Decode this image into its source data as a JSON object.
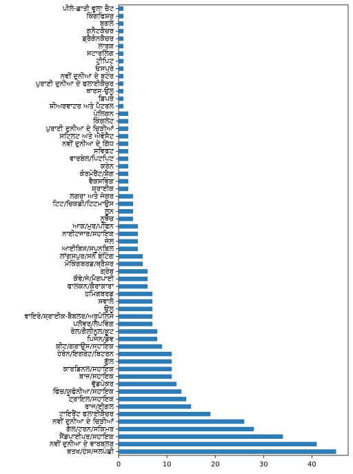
{
  "chart_data": {
    "type": "barh",
    "color": "#2f7bb4",
    "categories": [
      "ਪੀਲੇ-ਛਾਤੀ ਵੂਲਾ ਚੈਟ",
      "ਕਿੰਗਫਿਸ਼ਰ",
      "ਬਗਲੇ",
      "ਗਨੈਟਕੈਚਰ",
      "ਡ੍ਰੈਗੋਨਕੈਚਰ",
      "ਲਾਰਕ",
      "ਸਟਾਰਲਿੰਗ",
      "ਟੀਪਿਟ",
      "ਓਸਪ੍ਰੇ",
      "ਨਵੀਂ ਦੁਨੀਆ ਦੇ ਬਟੇਰ",
      "ਪੁਰਾਣੀ ਦੁਨੀਆ ਦੇ ਫਲਾਈਕੈਚਰ",
      "ਥਾਰਸ-ਉਲੂ",
      "ਡਿਪਰ",
      "ਸ਼ੀਅਰਵਾਟਰ ਅਤੇ ਪੈਟਰਲ",
      "ਪੇਲਿਕਨ",
      "ਕਿੰਗਲੇਟ",
      "ਪੁਰਾਣੀ ਦੁਨੀਆ ਦੇ ਚਿੜੀਆਂ",
      "ਸਟਿਲਟ ਅਤੇ ਐਵੋਸੈਟ",
      "ਨਵੀਂ ਦੁਨੀਆ ਦੇ ਗਿੱਧ",
      "ਸਵਿਫਟ",
      "ਵਾਰਬੇਲ/ਪਿਟਪਿਟ",
      "ਕਰੇਨ",
      "ਕੋਰਮੋਰੈਂਟ/ਸ਼ੈਗ",
      "ਵੈਕਸਵਿੰਗ",
      "ਸ਼੍ਰਾਈਕ",
      "ਲਗਰਾ ਅਤੇ ਜੇਗਰ",
      "ਟਿਟ/ਚਿਕਡੀ/ਟਿਟਮਾਉਸ",
      "ਲੂਨ",
      "ਨੂਥੈਚ",
      "ਆਕ/ਮੁਰ/ਪਫਿਨ",
      "ਨਾਈਟਜਾਰ/ਸਹਾਇਕ",
      "ਜੇਲ",
      "ਆਈਬਿਸ/ਸਪੂਨਬਿਲ",
      "ਲਾਂਗਸਪੁਰ/ਸਨੋ ਬੰਟਿੰਗ",
      "ਮੌਕਿੰਗਬਰਡ/ਥ੍ਰੈਸ਼ਰ",
      "ਗ੍ਰੇਬ",
      "ਕੌਵੇ/ਜੇ/ਮੈਗਪਾਈ",
      "ਫਾਲਕਨ/ਕੈਰਾਕਾਰਾ",
      "ਹਮਿੰਗਬਰਡ",
      "ਸਵਾਲੋ",
      "ਉਲੂ",
      "ਵਾਇਰੇ/ਸ਼੍ਰਾਈਕ-ਬੈਬਲਰ/ਅਰਪੋਲਿਸ",
      "ਪਲੋਵਰ/ਲੈਪਵਿੰਗ",
      "ਰੇਲ/ਗੈਲੀਨੂਲ/ਕੂਟ",
      "ਪਿਜਨ/ਡੋਵ",
      "ਕੀਟ/ਗਰਾਉਸ/ਸਹਾਇਕ",
      "ਹੇਰੋਨ/ਇਗਰੇਟ/ਬਿਟਰਨ",
      "ਗੁੱਲ",
      "ਕਾਰਡਿਨਲ/ਸਹਾਇਕ",
      "ਬਾਜ਼/ਸਹਾਇਕ",
      "ਵੁੱਡਪੇਕਰ",
      "ਫਿੰਚ/ਯੂਫੋਨੀਆ/ਸਹਾਇਕ",
      "ਟ੍ਰਾਇਲ/ਸਹਾਇਕ",
      "ਰਾਜ/ਈਗਲ",
      "ਟਾਇਰੈਂਟ ਫਲਾਈਕੈਚਰ",
      "ਨਵੀਂ ਦੁਨੀਆ ਦੇ ਚਿੜੀਆਂ",
      "ਗੱਲ/ਟਰਨ/ਸਕਿਮਰ",
      "ਸੈਂਡਪਾਈਪਰ/ਸਹਾਇਕ",
      "ਨਵੀਂ ਦੁਨੀਆ ਦੇ ਵਾਰਬਲਰ",
      "ਬਤਖ/ਹੰਸ/ਜਲਪੰਛੀ"
    ],
    "values": [
      1,
      1,
      1,
      1,
      1,
      1,
      1,
      1,
      1,
      1,
      1,
      1,
      1,
      1,
      2,
      2,
      2,
      2,
      2,
      2,
      2,
      2,
      2,
      2,
      2,
      3,
      3,
      3,
      3,
      4,
      4,
      4,
      4,
      5,
      5,
      6,
      6,
      6,
      7,
      7,
      7,
      7,
      7,
      8,
      8,
      9,
      11,
      11,
      11,
      11,
      12,
      13,
      14,
      15,
      19,
      26,
      28,
      34,
      41,
      45
    ],
    "xlim": [
      0,
      47.5
    ],
    "xticks": [
      0,
      10,
      20,
      30,
      40
    ]
  }
}
